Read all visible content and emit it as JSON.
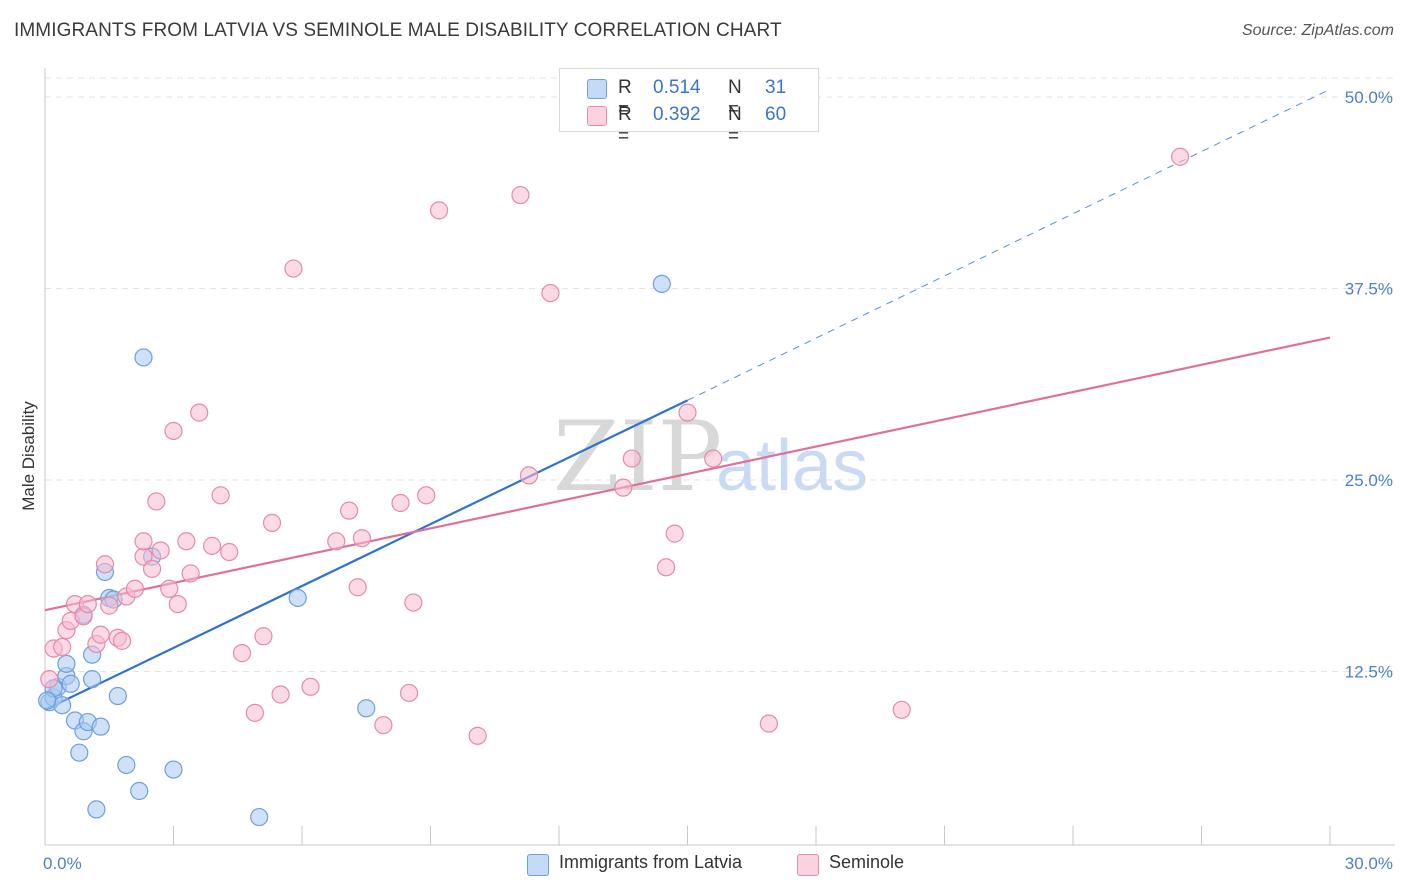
{
  "header": {
    "title": "IMMIGRANTS FROM LATVIA VS SEMINOLE MALE DISABILITY CORRELATION CHART",
    "source": "Source: ZipAtlas.com"
  },
  "watermark": {
    "part1": "ZIP",
    "part2": "atlas"
  },
  "legend": {
    "rows": [
      {
        "r_label": "R =",
        "r_value": "0.514",
        "n_label": "N =",
        "n_value": "31",
        "color": "#a8c8f0",
        "stroke": "#6f9fdc"
      },
      {
        "r_label": "R =",
        "r_value": "0.392",
        "n_label": "N =",
        "n_value": "60",
        "color": "#f7bcd0",
        "stroke": "#e68aa8"
      }
    ]
  },
  "chart_data": {
    "type": "scatter",
    "title": "IMMIGRANTS FROM LATVIA VS SEMINOLE MALE DISABILITY CORRELATION CHART",
    "xlabel": "",
    "ylabel": "Male Disability",
    "xlim": [
      0,
      30
    ],
    "ylim": [
      0,
      50
    ],
    "x_tick_labels": [
      "0.0%",
      "30.0%"
    ],
    "y_ticks": [
      12.5,
      25.0,
      37.5,
      50.0
    ],
    "y_tick_labels": [
      "12.5%",
      "25.0%",
      "37.5%",
      "50.0%"
    ],
    "grid": true,
    "legend_placement": "top-center",
    "series": [
      {
        "name": "Immigrants from Latvia",
        "color": "#a8c8f0",
        "stroke": "#6f9fdc",
        "line_color": "#2f72d0",
        "trend": {
          "x0": 0.0,
          "y0": 10.0,
          "x1": 15.0,
          "y1": 30.2
        },
        "trend_extension": {
          "x0": 15.0,
          "y0": 30.2,
          "x1": 30.0,
          "y1": 50.5
        },
        "points": [
          [
            0.1,
            10.5
          ],
          [
            0.2,
            10.8
          ],
          [
            0.3,
            11.5
          ],
          [
            0.4,
            10.3
          ],
          [
            0.5,
            12.2
          ],
          [
            0.5,
            13.0
          ],
          [
            0.6,
            11.7
          ],
          [
            0.7,
            9.3
          ],
          [
            0.8,
            7.2
          ],
          [
            0.9,
            8.6
          ],
          [
            0.9,
            16.2
          ],
          [
            1.0,
            9.2
          ],
          [
            1.1,
            12.0
          ],
          [
            1.1,
            13.6
          ],
          [
            1.2,
            3.5
          ],
          [
            1.3,
            8.9
          ],
          [
            1.4,
            19.0
          ],
          [
            1.5,
            17.3
          ],
          [
            1.6,
            17.2
          ],
          [
            1.7,
            10.9
          ],
          [
            1.9,
            6.4
          ],
          [
            2.2,
            4.7
          ],
          [
            2.3,
            33.0
          ],
          [
            2.5,
            20.0
          ],
          [
            3.0,
            6.1
          ],
          [
            5.0,
            3.0
          ],
          [
            5.9,
            17.3
          ],
          [
            7.5,
            10.1
          ],
          [
            14.4,
            37.8
          ],
          [
            0.2,
            11.4
          ],
          [
            0.05,
            10.6
          ]
        ]
      },
      {
        "name": "Seminole",
        "color": "#f7bcd0",
        "stroke": "#e68aa8",
        "line_color": "#e0709a",
        "trend": {
          "x0": 0.0,
          "y0": 16.5,
          "x1": 30.0,
          "y1": 34.3
        },
        "points": [
          [
            0.1,
            12.0
          ],
          [
            0.2,
            14.0
          ],
          [
            0.4,
            14.1
          ],
          [
            0.5,
            15.2
          ],
          [
            0.6,
            15.8
          ],
          [
            0.7,
            16.9
          ],
          [
            0.9,
            16.1
          ],
          [
            1.0,
            16.9
          ],
          [
            1.2,
            14.3
          ],
          [
            1.3,
            14.9
          ],
          [
            1.4,
            19.5
          ],
          [
            1.5,
            16.8
          ],
          [
            1.7,
            14.7
          ],
          [
            1.8,
            14.5
          ],
          [
            1.9,
            17.4
          ],
          [
            2.1,
            17.9
          ],
          [
            2.3,
            20.0
          ],
          [
            2.3,
            21.0
          ],
          [
            2.5,
            19.2
          ],
          [
            2.6,
            23.6
          ],
          [
            2.7,
            20.4
          ],
          [
            2.9,
            17.9
          ],
          [
            3.0,
            28.2
          ],
          [
            3.1,
            16.9
          ],
          [
            3.3,
            21.0
          ],
          [
            3.4,
            18.9
          ],
          [
            3.6,
            29.4
          ],
          [
            3.9,
            20.7
          ],
          [
            4.1,
            24.0
          ],
          [
            4.3,
            20.3
          ],
          [
            4.6,
            13.7
          ],
          [
            4.9,
            9.8
          ],
          [
            5.1,
            14.8
          ],
          [
            5.3,
            22.2
          ],
          [
            5.5,
            11.0
          ],
          [
            5.8,
            38.8
          ],
          [
            6.2,
            11.5
          ],
          [
            6.8,
            21.0
          ],
          [
            7.1,
            23.0
          ],
          [
            7.3,
            18.0
          ],
          [
            7.4,
            21.2
          ],
          [
            7.9,
            9.0
          ],
          [
            8.3,
            23.5
          ],
          [
            8.5,
            11.1
          ],
          [
            8.6,
            17.0
          ],
          [
            8.9,
            24.0
          ],
          [
            9.2,
            42.6
          ],
          [
            10.1,
            8.3
          ],
          [
            11.1,
            43.6
          ],
          [
            11.3,
            25.3
          ],
          [
            11.8,
            37.2
          ],
          [
            13.5,
            24.5
          ],
          [
            13.7,
            26.4
          ],
          [
            14.5,
            19.3
          ],
          [
            14.7,
            21.5
          ],
          [
            15.0,
            29.4
          ],
          [
            15.6,
            26.4
          ],
          [
            16.9,
            9.1
          ],
          [
            20.0,
            10.0
          ],
          [
            26.5,
            46.1
          ]
        ]
      }
    ]
  }
}
